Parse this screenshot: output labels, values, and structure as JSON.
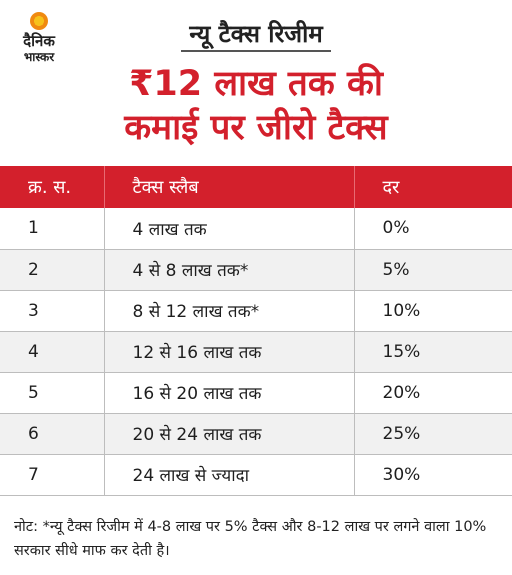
{
  "logo": {
    "line1": "दैनिक",
    "line2": "भास्कर"
  },
  "subtitle": "न्यू टैक्स रिजीम",
  "headline": {
    "line1": "₹12 लाख तक की",
    "line2": "कमाई पर जीरो टैक्स"
  },
  "table": {
    "headers": [
      "क्र. स.",
      "टैक्स स्लैब",
      "दर"
    ],
    "rows": [
      [
        "1",
        "4 लाख तक",
        "0%"
      ],
      [
        "2",
        "4 से 8 लाख तक*",
        "5%"
      ],
      [
        "3",
        "8 से 12 लाख तक*",
        "10%"
      ],
      [
        "4",
        "12 से 16 लाख तक",
        "15%"
      ],
      [
        "5",
        "16 से 20 लाख तक",
        "20%"
      ],
      [
        "6",
        "20 से 24 लाख तक",
        "25%"
      ],
      [
        "7",
        "24 लाख से ज्यादा",
        "30%"
      ]
    ]
  },
  "note": "नोट: *न्यू टैक्स रिजीम में 4-8 लाख पर 5% टैक्स और 8-12 लाख पर लगने वाला 10% सरकार सीधे माफ कर देती है।",
  "colors": {
    "accent": "#d3202c",
    "logo_orange": "#f08a10"
  }
}
